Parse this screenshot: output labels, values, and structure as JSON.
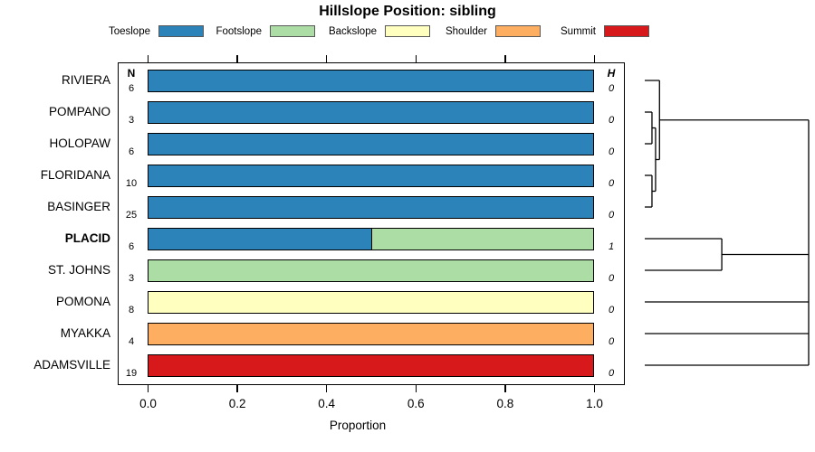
{
  "chart_data": {
    "type": "bar",
    "orientation": "horizontal-stacked",
    "title": "Hillslope Position: sibling",
    "xlabel": "Proportion",
    "xlim": [
      0,
      1
    ],
    "xtick_labels": [
      "0.0",
      "0.2",
      "0.4",
      "0.6",
      "0.8",
      "1.0"
    ],
    "xtick_values": [
      0.0,
      0.2,
      0.4,
      0.6,
      0.8,
      1.0
    ],
    "legend_position": "top",
    "legend": [
      {
        "label": "Toeslope",
        "color": "#2B83BA"
      },
      {
        "label": "Footslope",
        "color": "#ABDDA4"
      },
      {
        "label": "Backslope",
        "color": "#FFFFBF"
      },
      {
        "label": "Shoulder",
        "color": "#FDAE61"
      },
      {
        "label": "Summit",
        "color": "#D7191C"
      }
    ],
    "n_column_header": "N",
    "h_column_header": "H",
    "rows": [
      {
        "label": "RIVIERA",
        "n": "6",
        "h": "0",
        "bold": false,
        "segments": [
          {
            "category": "Toeslope",
            "value": 1.0
          }
        ]
      },
      {
        "label": "POMPANO",
        "n": "3",
        "h": "0",
        "bold": false,
        "segments": [
          {
            "category": "Toeslope",
            "value": 1.0
          }
        ]
      },
      {
        "label": "HOLOPAW",
        "n": "6",
        "h": "0",
        "bold": false,
        "segments": [
          {
            "category": "Toeslope",
            "value": 1.0
          }
        ]
      },
      {
        "label": "FLORIDANA",
        "n": "10",
        "h": "0",
        "bold": false,
        "segments": [
          {
            "category": "Toeslope",
            "value": 1.0
          }
        ]
      },
      {
        "label": "BASINGER",
        "n": "25",
        "h": "0",
        "bold": false,
        "segments": [
          {
            "category": "Toeslope",
            "value": 1.0
          }
        ]
      },
      {
        "label": "PLACID",
        "n": "6",
        "h": "1",
        "bold": true,
        "segments": [
          {
            "category": "Toeslope",
            "value": 0.5
          },
          {
            "category": "Footslope",
            "value": 0.5
          }
        ]
      },
      {
        "label": "ST. JOHNS",
        "n": "3",
        "h": "0",
        "bold": false,
        "segments": [
          {
            "category": "Footslope",
            "value": 1.0
          }
        ]
      },
      {
        "label": "POMONA",
        "n": "8",
        "h": "0",
        "bold": false,
        "segments": [
          {
            "category": "Backslope",
            "value": 1.0
          }
        ]
      },
      {
        "label": "MYAKKA",
        "n": "4",
        "h": "0",
        "bold": false,
        "segments": [
          {
            "category": "Shoulder",
            "value": 1.0
          }
        ]
      },
      {
        "label": "ADAMSVILLE",
        "n": "19",
        "h": "0",
        "bold": false,
        "segments": [
          {
            "category": "Summit",
            "value": 1.0
          }
        ]
      }
    ],
    "dendrogram": {
      "description": "cluster tree to right of bars; x=0 at leaves, x=1 at root; r=row index",
      "segments": [
        {
          "x1": 0.0,
          "r1": 0.0,
          "x2": 0.09,
          "r2": 0.0
        },
        {
          "x1": 0.0,
          "r1": 1.0,
          "x2": 0.044,
          "r2": 1.0
        },
        {
          "x1": 0.0,
          "r1": 2.0,
          "x2": 0.044,
          "r2": 2.0
        },
        {
          "x1": 0.044,
          "r1": 1.0,
          "x2": 0.044,
          "r2": 2.0
        },
        {
          "x1": 0.044,
          "r1": 1.5,
          "x2": 0.066,
          "r2": 1.5
        },
        {
          "x1": 0.0,
          "r1": 3.0,
          "x2": 0.044,
          "r2": 3.0
        },
        {
          "x1": 0.0,
          "r1": 4.0,
          "x2": 0.044,
          "r2": 4.0
        },
        {
          "x1": 0.044,
          "r1": 3.0,
          "x2": 0.044,
          "r2": 4.0
        },
        {
          "x1": 0.044,
          "r1": 3.5,
          "x2": 0.066,
          "r2": 3.5
        },
        {
          "x1": 0.066,
          "r1": 1.5,
          "x2": 0.066,
          "r2": 3.5
        },
        {
          "x1": 0.066,
          "r1": 2.5,
          "x2": 0.09,
          "r2": 2.5
        },
        {
          "x1": 0.09,
          "r1": 0.0,
          "x2": 0.09,
          "r2": 2.5
        },
        {
          "x1": 0.09,
          "r1": 1.25,
          "x2": 1.0,
          "r2": 1.25
        },
        {
          "x1": 0.0,
          "r1": 5.0,
          "x2": 0.47,
          "r2": 5.0
        },
        {
          "x1": 0.0,
          "r1": 6.0,
          "x2": 0.47,
          "r2": 6.0
        },
        {
          "x1": 0.47,
          "r1": 5.0,
          "x2": 0.47,
          "r2": 6.0
        },
        {
          "x1": 0.47,
          "r1": 5.5,
          "x2": 1.0,
          "r2": 5.5
        },
        {
          "x1": 0.0,
          "r1": 7.0,
          "x2": 1.0,
          "r2": 7.0
        },
        {
          "x1": 0.0,
          "r1": 8.0,
          "x2": 1.0,
          "r2": 8.0
        },
        {
          "x1": 0.0,
          "r1": 9.0,
          "x2": 1.0,
          "r2": 9.0
        },
        {
          "x1": 1.0,
          "r1": 1.25,
          "x2": 1.0,
          "r2": 9.0
        }
      ]
    }
  }
}
